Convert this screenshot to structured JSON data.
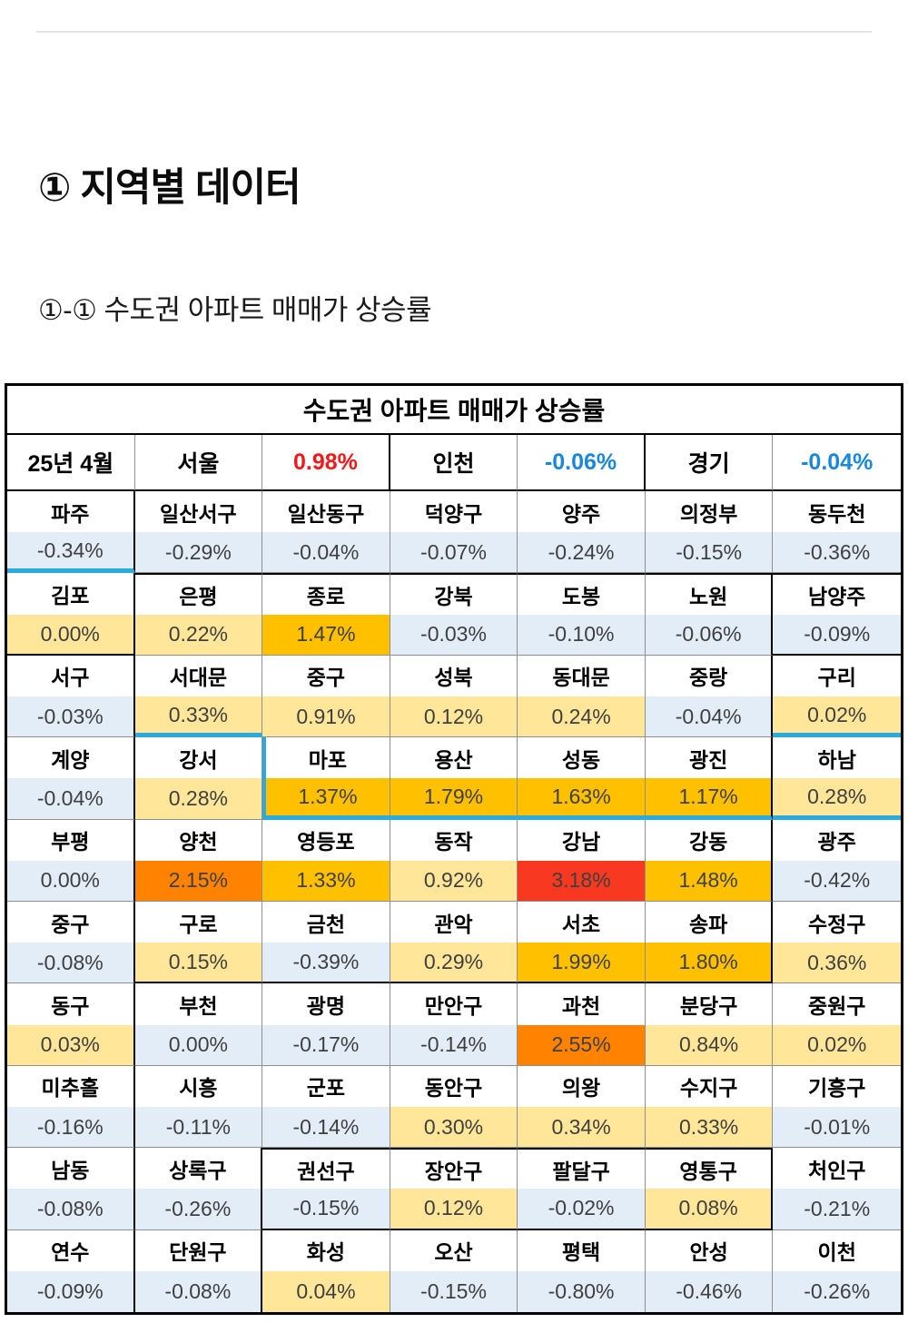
{
  "page": {
    "section_title": "① 지역별 데이터",
    "subsection_title": "①-① 수도권 아파트 매매가 상승률"
  },
  "table": {
    "title": "수도권 아파트 매매가 상승률",
    "period_label": "25년 4월",
    "summary": [
      {
        "region": "서울",
        "value": "0.98%",
        "trend": "up"
      },
      {
        "region": "인천",
        "value": "-0.06%",
        "trend": "down"
      },
      {
        "region": "경기",
        "value": "-0.04%",
        "trend": "down"
      }
    ],
    "rows": [
      {
        "cells": [
          {
            "name": "파주",
            "value": "-0.34%",
            "tier": "blue"
          },
          {
            "name": "일산서구",
            "value": "-0.29%",
            "tier": "blue"
          },
          {
            "name": "일산동구",
            "value": "-0.04%",
            "tier": "blue"
          },
          {
            "name": "덕양구",
            "value": "-0.07%",
            "tier": "blue"
          },
          {
            "name": "양주",
            "value": "-0.24%",
            "tier": "blue"
          },
          {
            "name": "의정부",
            "value": "-0.15%",
            "tier": "blue"
          },
          {
            "name": "동두천",
            "value": "-0.36%",
            "tier": "blue"
          }
        ]
      },
      {
        "cells": [
          {
            "name": "김포",
            "value": "0.00%",
            "tier": "yellow"
          },
          {
            "name": "은평",
            "value": "0.22%",
            "tier": "yellow"
          },
          {
            "name": "종로",
            "value": "1.47%",
            "tier": "amber"
          },
          {
            "name": "강북",
            "value": "-0.03%",
            "tier": "blue"
          },
          {
            "name": "도봉",
            "value": "-0.10%",
            "tier": "blue"
          },
          {
            "name": "노원",
            "value": "-0.06%",
            "tier": "blue"
          },
          {
            "name": "남양주",
            "value": "-0.09%",
            "tier": "blue"
          }
        ]
      },
      {
        "cells": [
          {
            "name": "서구",
            "value": "-0.03%",
            "tier": "blue"
          },
          {
            "name": "서대문",
            "value": "0.33%",
            "tier": "yellow"
          },
          {
            "name": "중구",
            "value": "0.91%",
            "tier": "yellow"
          },
          {
            "name": "성북",
            "value": "0.12%",
            "tier": "yellow"
          },
          {
            "name": "동대문",
            "value": "0.24%",
            "tier": "yellow"
          },
          {
            "name": "중랑",
            "value": "-0.04%",
            "tier": "blue"
          },
          {
            "name": "구리",
            "value": "0.02%",
            "tier": "yellow"
          }
        ]
      },
      {
        "cells": [
          {
            "name": "계양",
            "value": "-0.04%",
            "tier": "blue"
          },
          {
            "name": "강서",
            "value": "0.28%",
            "tier": "yellow"
          },
          {
            "name": "마포",
            "value": "1.37%",
            "tier": "amber"
          },
          {
            "name": "용산",
            "value": "1.79%",
            "tier": "amber"
          },
          {
            "name": "성동",
            "value": "1.63%",
            "tier": "amber"
          },
          {
            "name": "광진",
            "value": "1.17%",
            "tier": "amber"
          },
          {
            "name": "하남",
            "value": "0.28%",
            "tier": "yellow"
          }
        ]
      },
      {
        "cells": [
          {
            "name": "부평",
            "value": "0.00%",
            "tier": "blue"
          },
          {
            "name": "양천",
            "value": "2.15%",
            "tier": "orange"
          },
          {
            "name": "영등포",
            "value": "1.33%",
            "tier": "amber"
          },
          {
            "name": "동작",
            "value": "0.92%",
            "tier": "yellow"
          },
          {
            "name": "강남",
            "value": "3.18%",
            "tier": "red"
          },
          {
            "name": "강동",
            "value": "1.48%",
            "tier": "amber"
          },
          {
            "name": "광주",
            "value": "-0.42%",
            "tier": "blue"
          }
        ]
      },
      {
        "cells": [
          {
            "name": "중구",
            "value": "-0.08%",
            "tier": "blue"
          },
          {
            "name": "구로",
            "value": "0.15%",
            "tier": "yellow"
          },
          {
            "name": "금천",
            "value": "-0.39%",
            "tier": "blue"
          },
          {
            "name": "관악",
            "value": "0.29%",
            "tier": "yellow"
          },
          {
            "name": "서초",
            "value": "1.99%",
            "tier": "amber"
          },
          {
            "name": "송파",
            "value": "1.80%",
            "tier": "amber"
          },
          {
            "name": "수정구",
            "value": "0.36%",
            "tier": "yellow"
          }
        ]
      },
      {
        "cells": [
          {
            "name": "동구",
            "value": "0.03%",
            "tier": "yellow"
          },
          {
            "name": "부천",
            "value": "0.00%",
            "tier": "blue"
          },
          {
            "name": "광명",
            "value": "-0.17%",
            "tier": "blue"
          },
          {
            "name": "만안구",
            "value": "-0.14%",
            "tier": "blue"
          },
          {
            "name": "과천",
            "value": "2.55%",
            "tier": "orange"
          },
          {
            "name": "분당구",
            "value": "0.84%",
            "tier": "yellow"
          },
          {
            "name": "중원구",
            "value": "0.02%",
            "tier": "yellow"
          }
        ]
      },
      {
        "cells": [
          {
            "name": "미추홀",
            "value": "-0.16%",
            "tier": "blue"
          },
          {
            "name": "시흥",
            "value": "-0.11%",
            "tier": "blue"
          },
          {
            "name": "군포",
            "value": "-0.14%",
            "tier": "blue"
          },
          {
            "name": "동안구",
            "value": "0.30%",
            "tier": "yellow"
          },
          {
            "name": "의왕",
            "value": "0.34%",
            "tier": "yellow"
          },
          {
            "name": "수지구",
            "value": "0.33%",
            "tier": "yellow"
          },
          {
            "name": "기흥구",
            "value": "-0.01%",
            "tier": "blue"
          }
        ]
      },
      {
        "cells": [
          {
            "name": "남동",
            "value": "-0.08%",
            "tier": "blue"
          },
          {
            "name": "상록구",
            "value": "-0.26%",
            "tier": "blue"
          },
          {
            "name": "권선구",
            "value": "-0.15%",
            "tier": "blue"
          },
          {
            "name": "장안구",
            "value": "0.12%",
            "tier": "yellow"
          },
          {
            "name": "팔달구",
            "value": "-0.02%",
            "tier": "blue"
          },
          {
            "name": "영통구",
            "value": "0.08%",
            "tier": "yellow"
          },
          {
            "name": "처인구",
            "value": "-0.21%",
            "tier": "blue"
          }
        ]
      },
      {
        "cells": [
          {
            "name": "연수",
            "value": "-0.09%",
            "tier": "blue"
          },
          {
            "name": "단원구",
            "value": "-0.08%",
            "tier": "blue"
          },
          {
            "name": "화성",
            "value": "0.04%",
            "tier": "yellow"
          },
          {
            "name": "오산",
            "value": "-0.15%",
            "tier": "blue"
          },
          {
            "name": "평택",
            "value": "-0.80%",
            "tier": "blue"
          },
          {
            "name": "안성",
            "value": "-0.46%",
            "tier": "blue"
          },
          {
            "name": "이천",
            "value": "-0.26%",
            "tier": "blue"
          }
        ]
      }
    ]
  },
  "colors": {
    "tier_blue": "#E3EDF8",
    "tier_yellow": "#FFE699",
    "tier_amber": "#FFC000",
    "tier_orange": "#FF8300",
    "tier_red": "#F93822",
    "up_text": "#F61818",
    "down_text": "#1887DD",
    "river_line": "#29ABE2"
  }
}
